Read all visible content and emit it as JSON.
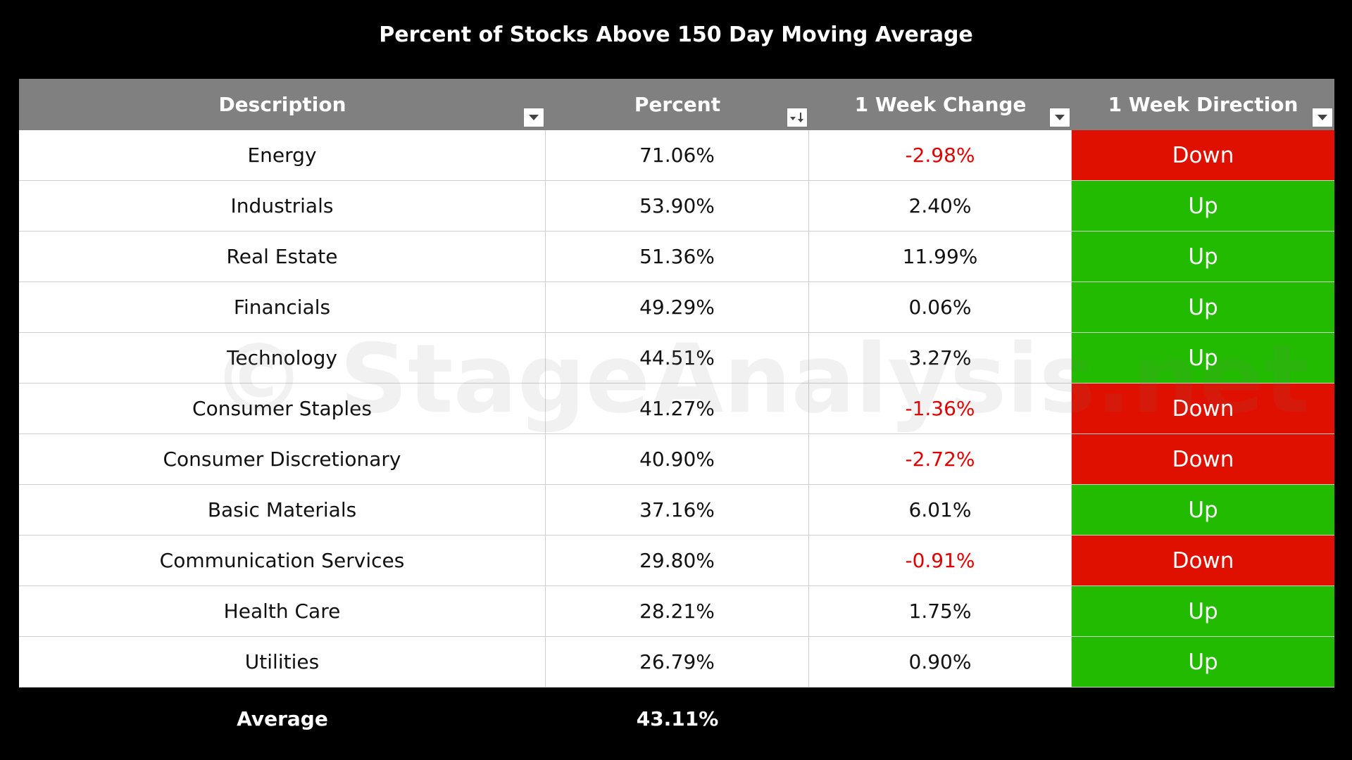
{
  "chart_data": {
    "type": "table",
    "title": "Percent of Stocks Above 150 Day Moving Average",
    "columns": [
      "Description",
      "Percent",
      "1 Week Change",
      "1 Week Direction"
    ],
    "rows": [
      {
        "description": "Energy",
        "percent": "71.06%",
        "change": "-2.98%",
        "direction": "Down"
      },
      {
        "description": "Industrials",
        "percent": "53.90%",
        "change": "2.40%",
        "direction": "Up"
      },
      {
        "description": "Real Estate",
        "percent": "51.36%",
        "change": "11.99%",
        "direction": "Up"
      },
      {
        "description": "Financials",
        "percent": "49.29%",
        "change": "0.06%",
        "direction": "Up"
      },
      {
        "description": "Technology",
        "percent": "44.51%",
        "change": "3.27%",
        "direction": "Up"
      },
      {
        "description": "Consumer Staples",
        "percent": "41.27%",
        "change": "-1.36%",
        "direction": "Down"
      },
      {
        "description": "Consumer Discretionary",
        "percent": "40.90%",
        "change": "-2.72%",
        "direction": "Down"
      },
      {
        "description": "Basic Materials",
        "percent": "37.16%",
        "change": "6.01%",
        "direction": "Up"
      },
      {
        "description": "Communication Services",
        "percent": "29.80%",
        "change": "-0.91%",
        "direction": "Down"
      },
      {
        "description": "Health Care",
        "percent": "28.21%",
        "change": "1.75%",
        "direction": "Up"
      },
      {
        "description": "Utilities",
        "percent": "26.79%",
        "change": "0.90%",
        "direction": "Up"
      }
    ],
    "footer": {
      "label": "Average",
      "value": "43.11%"
    }
  },
  "watermark": "© StageAnalysis.net",
  "colors": {
    "header_bg": "#808080",
    "up": "#22bb00",
    "down": "#e01000",
    "negative_text": "#e00000",
    "background": "#000000"
  },
  "icons": {
    "filter": "filter-dropdown-icon",
    "sort_desc": "sort-descending-filter-icon"
  }
}
